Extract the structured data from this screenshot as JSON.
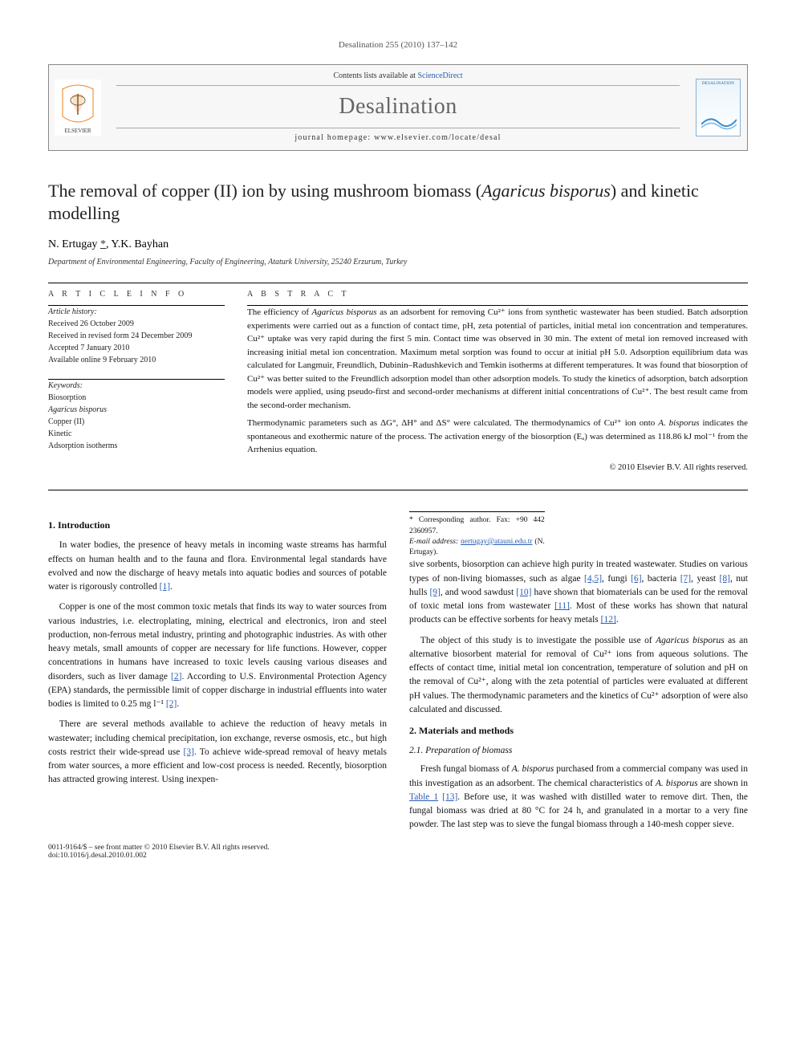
{
  "citation": "Desalination 255 (2010) 137–142",
  "banner": {
    "availability_prefix": "Contents lists available at ",
    "availability_link": "ScienceDirect",
    "journal_name": "Desalination",
    "homepage": "journal homepage: www.elsevier.com/locate/desal",
    "cover_label": "DESALINATION"
  },
  "title": "The removal of copper (II) ion by using mushroom biomass (Agaricus bisporus) and kinetic modelling",
  "authors_html": "N. Ertugay <a class=\"corr\" href=\"#\" data-name=\"corresponding-author-link\" data-interactable=\"true\">*</a>, Y.K. Bayhan",
  "affiliation": "Department of Environmental Engineering, Faculty of Engineering, Ataturk University, 25240 Erzurum, Turkey",
  "labels": {
    "article_info": "A R T I C L E   I N F O",
    "abstract": "A B S T R A C T",
    "history": "Article history:",
    "keywords": "Keywords:"
  },
  "history": [
    "Received 26 October 2009",
    "Received in revised form 24 December 2009",
    "Accepted 7 January 2010",
    "Available online 9 February 2010"
  ],
  "keywords": [
    "Biosorption",
    "Agaricus bisporus",
    "Copper (II)",
    "Kinetic",
    "Adsorption isotherms"
  ],
  "abstract": {
    "p1": "The efficiency of Agaricus bisporus as an adsorbent for removing Cu²⁺ ions from synthetic wastewater has been studied. Batch adsorption experiments were carried out as a function of contact time, pH, zeta potential of particles, initial metal ion concentration and temperatures. Cu²⁺ uptake was very rapid during the first 5 min. Contact time was observed in 30 min. The extent of metal ion removed increased with increasing initial metal ion concentration. Maximum metal sorption was found to occur at initial pH 5.0. Adsorption equilibrium data was calculated for Langmuir, Freundlich, Dubinin–Radushkevich and Temkin isotherms at different temperatures. It was found that biosorption of Cu²⁺ was better suited to the Freundlich adsorption model than other adsorption models. To study the kinetics of adsorption, batch adsorption models were applied, using pseudo-first and second-order mechanisms at different initial concentrations of Cu²⁺. The best result came from the second-order mechanism.",
    "p2": "Thermodynamic parameters such as ΔG°, ΔH° and ΔS° were calculated. The thermodynamics of Cu²⁺ ion onto A. bisporus indicates the spontaneous and exothermic nature of the process. The activation energy of the biosorption (Eₐ) was determined as 118.86 kJ mol⁻¹ from the Arrhenius equation.",
    "copyright": "© 2010 Elsevier B.V. All rights reserved."
  },
  "sections": {
    "s1_title": "1. Introduction",
    "s1_p1": "In water bodies, the presence of heavy metals in incoming waste streams has harmful effects on human health and to the fauna and flora. Environmental legal standards have evolved and now the discharge of heavy metals into aquatic bodies and sources of potable water is rigorously controlled [1].",
    "s1_p2": "Copper is one of the most common toxic metals that finds its way to water sources from various industries, i.e. electroplating, mining, electrical and electronics, iron and steel production, non-ferrous metal industry, printing and photographic industries. As with other heavy metals, small amounts of copper are necessary for life functions. However, copper concentrations in humans have increased to toxic levels causing various diseases and disorders, such as liver damage [2]. According to U.S. Environmental Protection Agency (EPA) standards, the permissible limit of copper discharge in industrial effluents into water bodies is limited to 0.25 mg l⁻¹ [2].",
    "s1_p3": "There are several methods available to achieve the reduction of heavy metals in wastewater; including chemical precipitation, ion exchange, reverse osmosis, etc., but high costs restrict their wide-spread use [3]. To achieve wide-spread removal of heavy metals from water sources, a more efficient and low-cost process is needed. Recently, biosorption has attracted growing interest. Using inexpen-",
    "s1_p4": "sive sorbents, biosorption can achieve high purity in treated wastewater. Studies on various types of non-living biomasses, such as algae [4,5], fungi [6], bacteria [7], yeast [8], nut hulls [9], and wood sawdust [10] have shown that biomaterials can be used for the removal of toxic metal ions from wastewater [11]. Most of these works has shown that natural products can be effective sorbents for heavy metals [12].",
    "s1_p5": "The object of this study is to investigate the possible use of Agaricus bisporus as an alternative biosorbent material for removal of Cu²⁺ ions from aqueous solutions. The effects of contact time, initial metal ion concentration, temperature of solution and pH on the removal of Cu²⁺, along with the zeta potential of particles were evaluated at different pH values. The thermodynamic parameters and the kinetics of Cu²⁺ adsorption of were also calculated and discussed.",
    "s2_title": "2. Materials and methods",
    "s2_1_title": "2.1. Preparation of biomass",
    "s2_1_p1": "Fresh fungal biomass of A. bisporus purchased from a commercial company was used in this investigation as an adsorbent. The chemical characteristics of A. bisporus are shown in Table 1 [13]. Before use, it was washed with distilled water to remove dirt. Then, the fungal biomass was dried at 80 °C for 24 h, and granulated in a mortar to a very fine powder. The last step was to sieve the fungal biomass through a 140-mesh copper sieve."
  },
  "footnote": {
    "corr": "* Corresponding author. Fax: +90 442 2360957.",
    "email_label": "E-mail address:",
    "email": "nertugay@atauni.edu.tr",
    "email_who": "(N. Ertugay)."
  },
  "footer": {
    "left1": "0011-9164/$ – see front matter © 2010 Elsevier B.V. All rights reserved.",
    "left2": "doi:10.1016/j.desal.2010.01.002"
  },
  "colors": {
    "link": "#2a5db0",
    "text": "#111111",
    "elsevier_orange": "#ef7f1a",
    "elsevier_bg": "#ffffff"
  }
}
